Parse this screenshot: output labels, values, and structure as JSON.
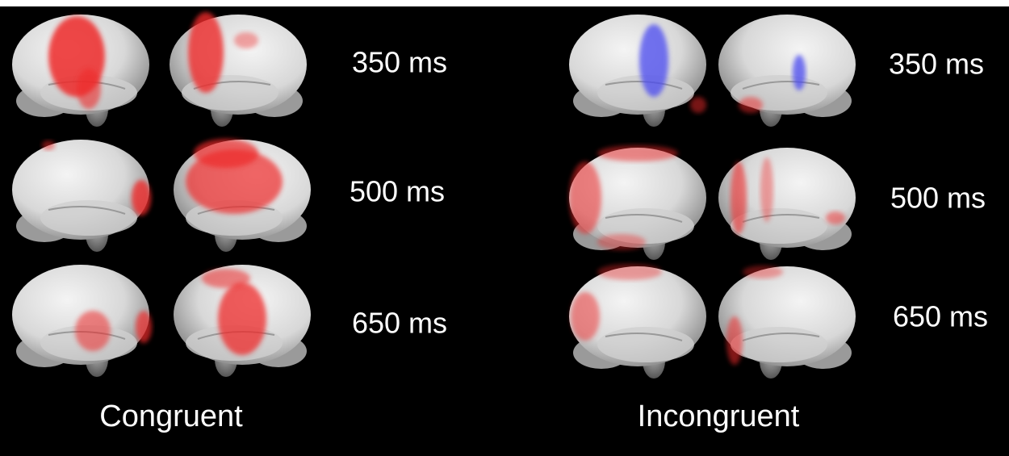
{
  "panels": [
    {
      "label": "Congruent",
      "times": [
        "350 ms",
        "500 ms",
        "650 ms"
      ]
    },
    {
      "label": "Incongruent",
      "times": [
        "350 ms",
        "500 ms",
        "650 ms"
      ]
    }
  ]
}
